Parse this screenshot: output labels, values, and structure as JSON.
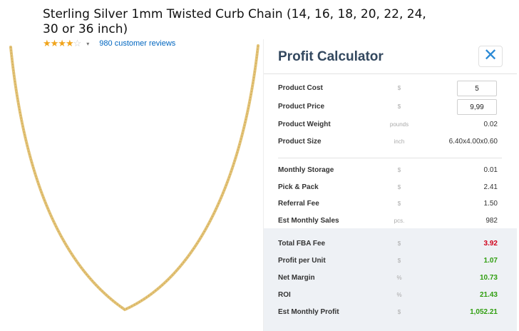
{
  "product": {
    "title": "Sterling Silver 1mm Twisted Curb Chain (14, 16, 18, 20, 22, 24, 30 or 36 inch)",
    "stars_filled": "★★★★",
    "stars_empty": "☆",
    "rating_caret": "▾",
    "reviews_link": "980 customer reviews"
  },
  "calculator": {
    "title": "Profit Calculator",
    "close_icon": "✕",
    "inputs": {
      "cost": {
        "label": "Product Cost",
        "unit": "$",
        "value": "5"
      },
      "price": {
        "label": "Product Price",
        "unit": "$",
        "value": "9,99"
      }
    },
    "info": {
      "weight": {
        "label": "Product Weight",
        "unit": "pounds",
        "value": "0.02"
      },
      "size": {
        "label": "Product Size",
        "unit": "inch",
        "value": "6.40x4.00x0.60"
      }
    },
    "fees": {
      "storage": {
        "label": "Monthly Storage",
        "unit": "$",
        "value": "0.01"
      },
      "pick": {
        "label": "Pick & Pack",
        "unit": "$",
        "value": "2.41"
      },
      "referral": {
        "label": "Referral Fee",
        "unit": "$",
        "value": "1.50"
      },
      "sales": {
        "label": "Est Monthly Sales",
        "unit": "pcs.",
        "value": "982"
      }
    },
    "summary": {
      "fba": {
        "label": "Total FBA Fee",
        "unit": "$",
        "value": "3.92"
      },
      "profit_unit": {
        "label": "Profit per Unit",
        "unit": "$",
        "value": "1.07"
      },
      "margin": {
        "label": "Net Margin",
        "unit": "%",
        "value": "10.73"
      },
      "roi": {
        "label": "ROI",
        "unit": "%",
        "value": "21.43"
      },
      "monthly_profit": {
        "label": "Est Monthly Profit",
        "unit": "$",
        "value": "1,052.21"
      }
    },
    "colors": {
      "negative": "#d0021b",
      "positive": "#2f9e0f",
      "accent": "#2b8ad6"
    }
  }
}
